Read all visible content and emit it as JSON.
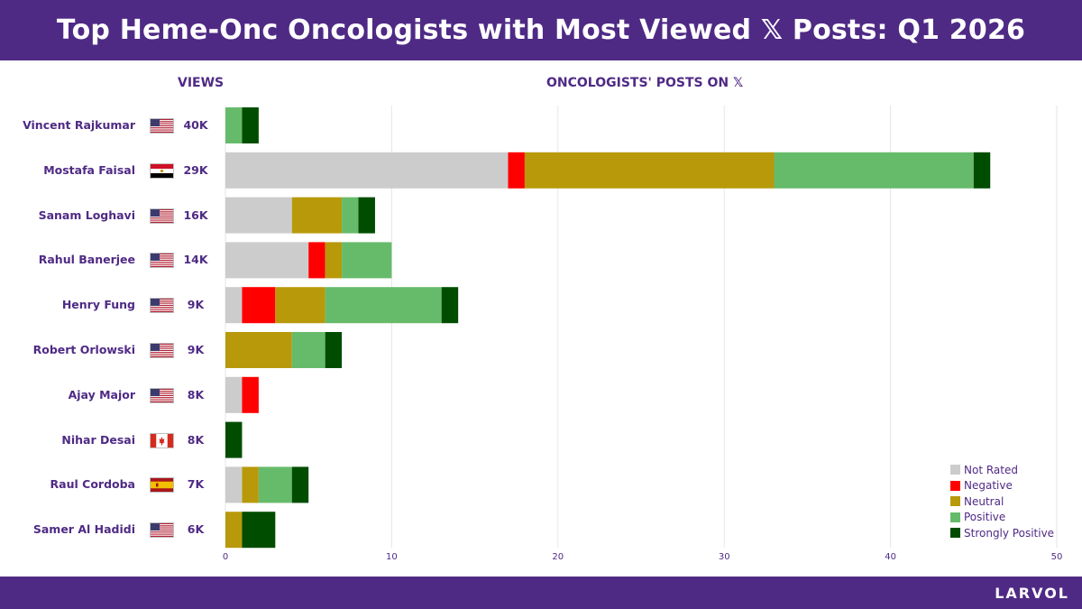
{
  "header": {
    "title": "Top Heme-Onc Oncologists with Most Viewed 𝕏 Posts: Q1 2026"
  },
  "columns": {
    "views": "VIEWS",
    "chart": "ONCOLOGISTS' POSTS ON 𝕏"
  },
  "footer": {
    "brand": "LARVOL"
  },
  "colors": {
    "Not Rated": "#cccccc",
    "Negative": "#ff0000",
    "Neutral": "#b8990a",
    "Positive": "#66bb6a",
    "Strongly Positive": "#004d00"
  },
  "chart_data": {
    "type": "bar",
    "orientation": "horizontal",
    "stacked": true,
    "title": "ONCOLOGISTS' POSTS ON 𝕏",
    "xlim": [
      0,
      50
    ],
    "xticks": [
      0,
      10,
      20,
      30,
      40,
      50
    ],
    "grid": true,
    "legend_position": "bottom-right",
    "categories": [
      "Vincent Rajkumar",
      "Mostafa Faisal",
      "Sanam Loghavi",
      "Rahul Banerjee",
      "Henry Fung",
      "Robert Orlowski",
      "Ajay Major",
      "Nihar Desai",
      "Raul Cordoba",
      "Samer Al Hadidi"
    ],
    "views": [
      "40K",
      "29K",
      "16K",
      "14K",
      "9K",
      "9K",
      "8K",
      "8K",
      "7K",
      "6K"
    ],
    "flags": [
      "us-flag",
      "egypt-flag",
      "us-flag",
      "us-flag",
      "us-flag",
      "us-flag",
      "us-flag",
      "canada-flag",
      "spain-flag",
      "us-flag"
    ],
    "series": [
      {
        "name": "Not Rated",
        "values": [
          0,
          17,
          4,
          5,
          1,
          0,
          1,
          0,
          1,
          0
        ]
      },
      {
        "name": "Negative",
        "values": [
          0,
          1,
          0,
          1,
          2,
          0,
          1,
          0,
          0,
          0
        ]
      },
      {
        "name": "Neutral",
        "values": [
          0,
          15,
          3,
          1,
          3,
          4,
          0,
          0,
          1,
          1
        ]
      },
      {
        "name": "Positive",
        "values": [
          1,
          12,
          1,
          3,
          7,
          2,
          0,
          0,
          2,
          0
        ]
      },
      {
        "name": "Strongly Positive",
        "values": [
          1,
          1,
          1,
          0,
          1,
          1,
          0,
          1,
          1,
          2
        ]
      }
    ]
  }
}
